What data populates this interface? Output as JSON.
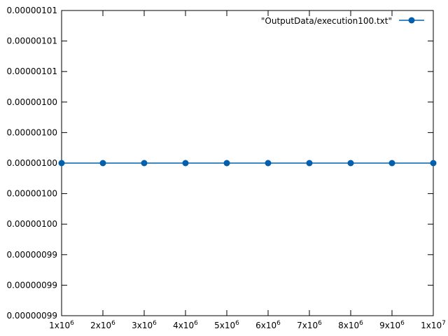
{
  "chart_data": {
    "type": "line",
    "title": "",
    "xlabel": "",
    "ylabel": "",
    "x_tick_labels": [
      {
        "base": "1x10",
        "exp": "6"
      },
      {
        "base": "2x10",
        "exp": "6"
      },
      {
        "base": "3x10",
        "exp": "6"
      },
      {
        "base": "4x10",
        "exp": "6"
      },
      {
        "base": "5x10",
        "exp": "6"
      },
      {
        "base": "6x10",
        "exp": "6"
      },
      {
        "base": "7x10",
        "exp": "6"
      },
      {
        "base": "8x10",
        "exp": "6"
      },
      {
        "base": "9x10",
        "exp": "6"
      },
      {
        "base": "1x10",
        "exp": "7"
      }
    ],
    "y_tick_labels": [
      "0.00000101",
      "0.00000101",
      "0.00000101",
      "0.00000100",
      "0.00000100",
      "0.00000100",
      "0.00000100",
      "0.00000100",
      "0.00000099",
      "0.00000099",
      "0.00000099"
    ],
    "xlim": [
      1000000,
      10000000
    ],
    "ylim": [
      9.95e-07,
      1.005e-06
    ],
    "y_ticks": [
      1.005e-06,
      1.004e-06,
      1.003e-06,
      1.002e-06,
      1.001e-06,
      1e-06,
      9.99e-07,
      9.98e-07,
      9.97e-07,
      9.96e-07,
      9.95e-07
    ],
    "grid": false,
    "legend_position": "top-right",
    "series": [
      {
        "name": "\"OutputData/execution100.txt\"",
        "color": "#0060ad",
        "x": [
          1000000,
          2000000,
          3000000,
          4000000,
          5000000,
          6000000,
          7000000,
          8000000,
          9000000,
          10000000
        ],
        "y": [
          1e-06,
          1e-06,
          1e-06,
          1e-06,
          1e-06,
          1e-06,
          1e-06,
          1e-06,
          1e-06,
          1e-06
        ]
      }
    ]
  }
}
